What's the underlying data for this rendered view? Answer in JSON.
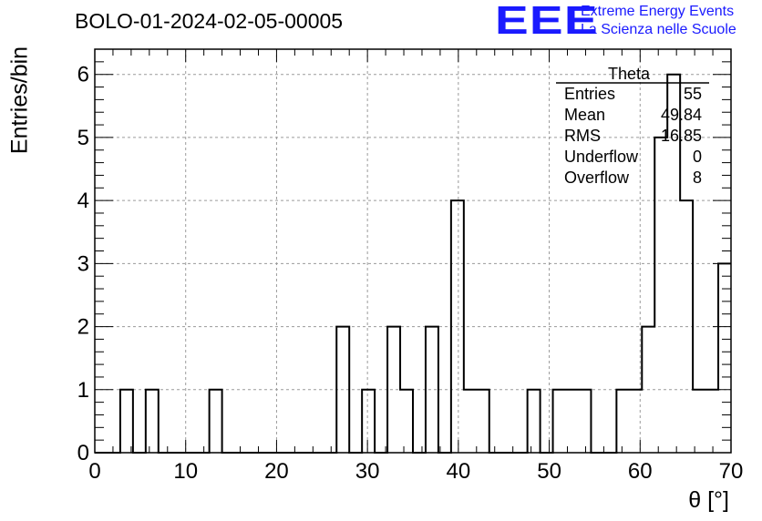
{
  "title": "BOLO-01-2024-02-05-00005",
  "logo": {
    "mark": "EEE",
    "line1": "Extreme Energy Events",
    "line2": "La Scienza nelle Scuole",
    "color": "#1a1aff"
  },
  "stats": {
    "title": "Theta",
    "rows": [
      {
        "label": "Entries",
        "value": "55"
      },
      {
        "label": "Mean",
        "value": "49.84"
      },
      {
        "label": "RMS",
        "value": "16.85"
      },
      {
        "label": "Underflow",
        "value": "0"
      },
      {
        "label": "Overflow",
        "value": "8"
      }
    ]
  },
  "chart_data": {
    "type": "bar",
    "histogram": true,
    "bin_width": 1.4,
    "bin_edges_start": 0,
    "values": [
      0,
      0,
      1,
      0,
      1,
      0,
      0,
      0,
      0,
      1,
      0,
      0,
      0,
      0,
      0,
      0,
      0,
      0,
      0,
      2,
      0,
      1,
      0,
      2,
      1,
      0,
      2,
      0,
      4,
      1,
      1,
      0,
      0,
      0,
      1,
      0,
      1,
      1,
      1,
      0,
      0,
      1,
      1,
      2,
      5,
      6,
      4,
      1,
      1,
      3
    ],
    "xlabel": "θ [°]",
    "ylabel": "Entries/bin",
    "xlim": [
      0,
      70
    ],
    "ylim": [
      0,
      6.4
    ],
    "xticks": [
      0,
      10,
      20,
      30,
      40,
      50,
      60,
      70
    ],
    "yticks": [
      0,
      1,
      2,
      3,
      4,
      5,
      6
    ],
    "grid": true,
    "line_color": "#000000"
  }
}
